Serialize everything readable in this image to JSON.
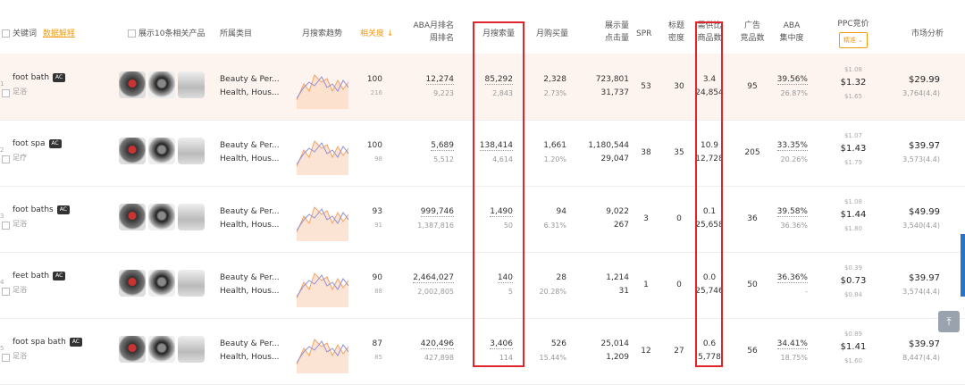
{
  "header": {
    "keyword": "关键词",
    "keyword_link": "数据解释",
    "show_related": "展示10条相关产品",
    "category": "所属类目",
    "trend": "月搜索趋势",
    "relevance": "相关度 ↓",
    "aba_rank_1": "ABA月排名",
    "aba_rank_2": "周排名",
    "monthly_search": "月搜索量",
    "monthly_purchase": "月购买量",
    "impressions_1": "展示量",
    "impressions_2": "点击量",
    "spr": "SPR",
    "title_density_1": "标题",
    "title_density_2": "密度",
    "supply_demand_1": "需供比",
    "supply_demand_2": "商品数",
    "ad_products_1": "广告",
    "ad_products_2": "竞品数",
    "aba_concentration_1": "ABA",
    "aba_concentration_2": "集中度",
    "ppc_bid": "PPC竞价",
    "ppc_select": "精准 ⌄",
    "market_analysis": "市场分析"
  },
  "rows": [
    {
      "idx": "1",
      "keyword": "foot bath",
      "badge": "AC",
      "translation": "足浴",
      "category_1": "Beauty & Per...",
      "category_2": "Health, Hous...",
      "relevance": "100",
      "relevance_sub": "216",
      "aba_rank": "12,274",
      "week_rank": "9,223",
      "search": "85,292",
      "search_sub": "2,843",
      "purchase": "2,328",
      "purchase_pct": "2.73%",
      "impressions": "723,801",
      "clicks": "31,737",
      "spr": "53",
      "title_density": "30",
      "ratio": "3.4",
      "products": "24,854",
      "ad_products": "95",
      "concentration": "39.56%",
      "concentration_sub": "26.87%",
      "ppc_low": "$1.08",
      "ppc_mid": "$1.32",
      "ppc_high": "$1.65",
      "price": "$29.99",
      "reviews": "3,764(4.4)"
    },
    {
      "idx": "2",
      "keyword": "foot spa",
      "badge": "AC",
      "translation": "足疗",
      "category_1": "Beauty & Per...",
      "category_2": "Health, Hous...",
      "relevance": "100",
      "relevance_sub": "98",
      "aba_rank": "5,689",
      "week_rank": "5,512",
      "search": "138,414",
      "search_sub": "4,614",
      "purchase": "1,661",
      "purchase_pct": "1.20%",
      "impressions": "1,180,544",
      "clicks": "29,047",
      "spr": "38",
      "title_density": "35",
      "ratio": "10.9",
      "products": "12,728",
      "ad_products": "205",
      "concentration": "33.35%",
      "concentration_sub": "20.26%",
      "ppc_low": "$1.07",
      "ppc_mid": "$1.43",
      "ppc_high": "$1.79",
      "price": "$39.97",
      "reviews": "3,573(4.4)"
    },
    {
      "idx": "3",
      "keyword": "foot baths",
      "badge": "AC",
      "translation": "足浴",
      "category_1": "Beauty & Per...",
      "category_2": "Health, Hous...",
      "relevance": "93",
      "relevance_sub": "91",
      "aba_rank": "999,746",
      "week_rank": "1,387,816",
      "search": "1,490",
      "search_sub": "50",
      "purchase": "94",
      "purchase_pct": "6.31%",
      "impressions": "9,022",
      "clicks": "267",
      "spr": "3",
      "title_density": "0",
      "ratio": "0.1",
      "products": "25,658",
      "ad_products": "36",
      "concentration": "39.58%",
      "concentration_sub": "36.36%",
      "ppc_low": "$1.08",
      "ppc_mid": "$1.44",
      "ppc_high": "$1.80",
      "price": "$49.99",
      "reviews": "3,540(4.4)"
    },
    {
      "idx": "4",
      "keyword": "feet bath",
      "badge": "AC",
      "translation": "足浴",
      "category_1": "Beauty & Per...",
      "category_2": "Health, Hous...",
      "relevance": "90",
      "relevance_sub": "88",
      "aba_rank": "2,464,027",
      "week_rank": "2,002,805",
      "search": "140",
      "search_sub": "5",
      "purchase": "28",
      "purchase_pct": "20.28%",
      "impressions": "1,214",
      "clicks": "31",
      "spr": "1",
      "title_density": "0",
      "ratio": "0.0",
      "products": "25,746",
      "ad_products": "50",
      "concentration": "36.36%",
      "concentration_sub": "-",
      "ppc_low": "$0.39",
      "ppc_mid": "$0.73",
      "ppc_high": "$0.84",
      "price": "$39.97",
      "reviews": "3,574(4.4)"
    },
    {
      "idx": "5",
      "keyword": "foot spa bath",
      "badge": "AC",
      "translation": "足浴",
      "category_1": "Beauty & Per...",
      "category_2": "Health, Hous...",
      "relevance": "87",
      "relevance_sub": "85",
      "aba_rank": "420,496",
      "week_rank": "427,898",
      "search": "3,406",
      "search_sub": "114",
      "purchase": "526",
      "purchase_pct": "15.44%",
      "impressions": "25,014",
      "clicks": "1,209",
      "spr": "12",
      "title_density": "27",
      "ratio": "0.6",
      "products": "5,778",
      "ad_products": "56",
      "concentration": "34.41%",
      "concentration_sub": "18.75%",
      "ppc_low": "$0.89",
      "ppc_mid": "$1.41",
      "ppc_high": "$1.60",
      "price": "$39.97",
      "reviews": "8,447(4.4)"
    }
  ],
  "colors": {
    "highlight_row": "#fdf3ef",
    "red_box": "#e0262b",
    "accent": "#f39c12",
    "scroll": "#2a73c8"
  },
  "icons": {
    "back_to_top": "arrow-up-icon"
  }
}
